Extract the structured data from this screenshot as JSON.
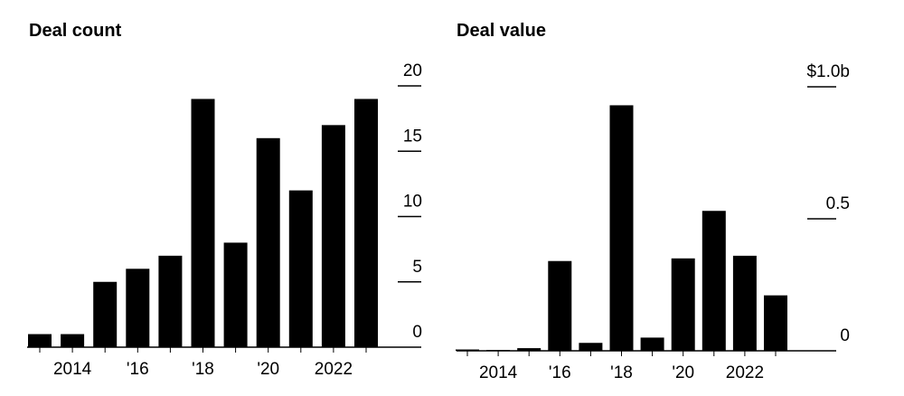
{
  "chart_data": [
    {
      "type": "bar",
      "title": "Deal count",
      "categories": [
        null,
        "2014",
        null,
        "'16",
        null,
        "'18",
        null,
        "'20",
        null,
        "2022",
        null
      ],
      "values": [
        1,
        1,
        5,
        6,
        7,
        19,
        8,
        16,
        12,
        17,
        19
      ],
      "color": "#000000",
      "ylim": [
        0,
        20
      ],
      "yticks": [
        0,
        5,
        10,
        15,
        20
      ]
    },
    {
      "type": "bar",
      "title": "Deal value",
      "categories": [
        null,
        "2014",
        null,
        "'16",
        null,
        "'18",
        null,
        "'20",
        null,
        "2022",
        null
      ],
      "values": [
        0.005,
        0.003,
        0.01,
        0.34,
        0.03,
        0.93,
        0.05,
        0.35,
        0.53,
        0.36,
        0.21
      ],
      "color": "#000000",
      "ylim": [
        0,
        1.0
      ],
      "yticks": [
        0,
        0.5,
        {
          "value": 1.0,
          "label": "$1.0b"
        }
      ]
    }
  ]
}
